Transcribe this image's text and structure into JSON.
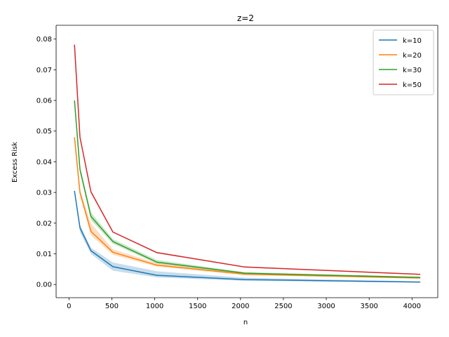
{
  "chart_data": {
    "type": "line",
    "title": "z=2",
    "xlabel": "n",
    "ylabel": "Excess Risk",
    "xlim": [
      -150,
      4300
    ],
    "ylim": [
      -0.0043,
      0.0845
    ],
    "xticks": [
      0,
      500,
      1000,
      1500,
      2000,
      2500,
      3000,
      3500,
      4000
    ],
    "xtick_labels": [
      "0",
      "500",
      "1000",
      "1500",
      "2000",
      "2500",
      "3000",
      "3500",
      "4000"
    ],
    "yticks": [
      0.0,
      0.01,
      0.02,
      0.03,
      0.04,
      0.05,
      0.06,
      0.07,
      0.08
    ],
    "ytick_labels": [
      "0.00",
      "0.01",
      "0.02",
      "0.03",
      "0.04",
      "0.05",
      "0.06",
      "0.07",
      "0.08"
    ],
    "legend_position": "top-right",
    "grid": false,
    "x": [
      64,
      128,
      256,
      512,
      1024,
      2048,
      4096
    ],
    "series": [
      {
        "name": "k=10",
        "color": "#1f77b4",
        "values": [
          0.0305,
          0.0185,
          0.011,
          0.0058,
          0.003,
          0.0016,
          0.0008
        ],
        "lower": [
          0.03,
          0.017,
          0.01,
          0.0045,
          0.0023,
          0.0012,
          0.0006
        ],
        "upper": [
          0.031,
          0.0195,
          0.012,
          0.0072,
          0.0043,
          0.0022,
          0.001
        ]
      },
      {
        "name": "k=20",
        "color": "#ff7f0e",
        "values": [
          0.048,
          0.03,
          0.0173,
          0.0105,
          0.0063,
          0.0034,
          0.0021
        ],
        "lower": [
          0.0475,
          0.029,
          0.016,
          0.0097,
          0.0058,
          0.003,
          0.0019
        ],
        "upper": [
          0.0485,
          0.031,
          0.02,
          0.0115,
          0.007,
          0.0038,
          0.0023
        ]
      },
      {
        "name": "k=30",
        "color": "#2ca02c",
        "values": [
          0.06,
          0.0375,
          0.0222,
          0.014,
          0.0073,
          0.0037,
          0.0023
        ],
        "lower": [
          0.0595,
          0.0365,
          0.021,
          0.0133,
          0.0068,
          0.0034,
          0.0021
        ],
        "upper": [
          0.0605,
          0.0385,
          0.0235,
          0.0148,
          0.008,
          0.004,
          0.0025
        ]
      },
      {
        "name": "k=50",
        "color": "#d62728",
        "values": [
          0.0782,
          0.048,
          0.0302,
          0.0171,
          0.0104,
          0.0057,
          0.0033
        ],
        "lower": [
          0.078,
          0.0475,
          0.0298,
          0.0169,
          0.0102,
          0.0055,
          0.0032
        ],
        "upper": [
          0.0785,
          0.0485,
          0.0306,
          0.0173,
          0.0106,
          0.0059,
          0.0034
        ]
      }
    ]
  }
}
